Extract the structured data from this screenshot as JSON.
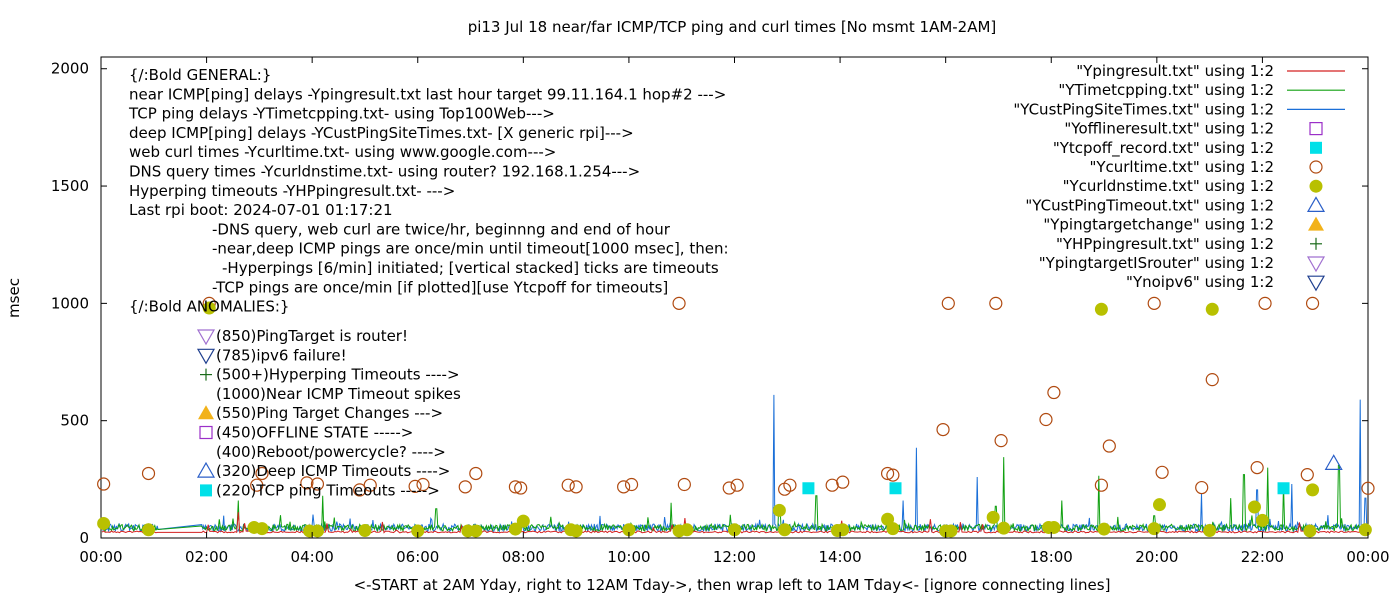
{
  "chart_data": {
    "type": "line",
    "title": "pi13 Jul 18  near/far ICMP/TCP ping and curl times [No msmt 1AM-2AM]",
    "xlabel": "<-START at 2AM Yday, right to 12AM Tday->, then wrap left to 1AM Tday<- [ignore connecting lines]",
    "ylabel": "msec",
    "xlim": [
      0,
      24
    ],
    "ylim": [
      0,
      2050
    ],
    "x_ticks": [
      "00:00",
      "02:00",
      "04:00",
      "06:00",
      "08:00",
      "10:00",
      "12:00",
      "14:00",
      "16:00",
      "18:00",
      "20:00",
      "22:00",
      "00:00"
    ],
    "y_ticks": [
      "0",
      "500",
      "1000",
      "1500",
      "2000"
    ],
    "legend_position": "top-right",
    "annotations": [
      "{/:Bold GENERAL:}",
      "near ICMP[ping] delays -Ypingresult.txt last hour target 99.11.164.1 hop#2 --->",
      "TCP ping delays -YTimetcpping.txt- using Top100Web--->",
      "deep ICMP[ping] delays -YCustPingSiteTimes.txt- [X generic rpi]--->",
      "web curl times -Ycurltime.txt- using www.google.com--->",
      "DNS query times -Ycurldnstime.txt- using router? 192.168.1.254--->",
      "Hyperping timeouts -YHPpingresult.txt- --->",
      "Last rpi boot: 2024-07-01 01:17:21",
      "-DNS query, web curl are twice/hr, beginnng and end of hour",
      "-near,deep ICMP pings are once/min until timeout[1000 msec], then:",
      "-Hyperpings [6/min] initiated; [vertical stacked] ticks are timeouts",
      "-TCP pings are once/min [if plotted][use Ytcpoff for timeouts]",
      "{/:Bold ANOMALIES:}"
    ],
    "anomaly_keys": [
      {
        "symbol": "tri-down-hollow",
        "color": "#a070d0",
        "text": "(850)PingTarget is router!"
      },
      {
        "symbol": "tri-down-hollow",
        "color": "#1f3f8f",
        "text": "(785)ipv6 failure!"
      },
      {
        "symbol": "plus",
        "color": "#1a6b1a",
        "text": "(500+)Hyperping Timeouts ---->"
      },
      {
        "symbol": "none",
        "color": "#000000",
        "text": "(1000)Near ICMP Timeout spikes"
      },
      {
        "symbol": "tri-up-filled",
        "color": "#f2b21a",
        "text": "(550)Ping Target Changes --->"
      },
      {
        "symbol": "square-hollow",
        "color": "#9b30c8",
        "text": "(450)OFFLINE STATE ----->"
      },
      {
        "symbol": "none",
        "color": "#000000",
        "text": "(400)Reboot/powercycle? ---->"
      },
      {
        "symbol": "tri-up-hollow",
        "color": "#2b5fc8",
        "text": "(320)Deep ICMP Timeouts ---->"
      },
      {
        "symbol": "square-filled",
        "color": "#00e0e8",
        "text": "(220)TCP ping Timeouts ----->"
      }
    ],
    "legend": [
      {
        "label": "\"Ypingresult.txt\" using 1:2",
        "symbol": "line",
        "color": "#d42020"
      },
      {
        "label": "\"YTimetcpping.txt\" using 1:2",
        "symbol": "line",
        "color": "#10a010"
      },
      {
        "label": "\"YCustPingSiteTimes.txt\" using 1:2",
        "symbol": "line",
        "color": "#1a6fd8"
      },
      {
        "label": "\"Yofflineresult.txt\" using 1:2",
        "symbol": "square-hollow",
        "color": "#9b30c8"
      },
      {
        "label": "\"Ytcpoff_record.txt\" using 1:2",
        "symbol": "square-filled",
        "color": "#00e0e8"
      },
      {
        "label": "\"Ycurltime.txt\" using 1:2",
        "symbol": "circle-hollow",
        "color": "#b04a10"
      },
      {
        "label": "\"Ycurldnstime.txt\" using 1:2",
        "symbol": "circle-filled",
        "color": "#b8c000"
      },
      {
        "label": "\"YCustPingTimeout.txt\" using 1:2",
        "symbol": "tri-up-hollow",
        "color": "#2b5fc8"
      },
      {
        "label": "\"Ypingtargetchange\" using 1:2",
        "symbol": "tri-up-filled",
        "color": "#f2b21a"
      },
      {
        "label": "\"YHPpingresult.txt\" using 1:2",
        "symbol": "plus",
        "color": "#1a6b1a"
      },
      {
        "label": "\"YpingtargetISrouter\" using 1:2",
        "symbol": "tri-down-hollow",
        "color": "#a070d0"
      },
      {
        "label": "\"Ynoipv6\" using 1:2",
        "symbol": "tri-down-hollow",
        "color": "#1f3f8f"
      }
    ],
    "series": [
      {
        "file": "Ycurltime.txt",
        "marker": "circle-hollow",
        "color": "#b04a10",
        "x": [
          0.05,
          0.9,
          2.05,
          2.95,
          3.05,
          3.9,
          4.1,
          4.9,
          5.1,
          5.95,
          6.1,
          6.9,
          7.1,
          7.85,
          7.95,
          8.85,
          9.0,
          9.9,
          10.05,
          10.95,
          11.05,
          11.9,
          12.05,
          12.95,
          13.05,
          13.85,
          14.05,
          14.9,
          15.0,
          15.95,
          16.05,
          16.95,
          17.05,
          17.9,
          18.05,
          18.95,
          19.1,
          19.95,
          20.1,
          20.85,
          21.05,
          21.9,
          22.05,
          22.85,
          22.95,
          24.0
        ],
        "y": [
          230,
          275,
          1000,
          225,
          275,
          235,
          230,
          205,
          225,
          220,
          228,
          218,
          275,
          218,
          213,
          225,
          218,
          218,
          228,
          1000,
          228,
          213,
          225,
          208,
          225,
          225,
          238,
          275,
          268,
          462,
          1000,
          1000,
          415,
          505,
          620,
          225,
          392,
          1000,
          280,
          215,
          675,
          300,
          1000,
          270,
          1000,
          212
        ]
      },
      {
        "file": "Ycurldnstime.txt",
        "marker": "circle-filled",
        "color": "#b8c000",
        "x": [
          0.05,
          0.9,
          2.05,
          2.9,
          3.05,
          3.95,
          4.1,
          5.0,
          6.0,
          6.95,
          7.1,
          7.85,
          8.0,
          8.9,
          9.0,
          10.0,
          10.95,
          11.1,
          12.0,
          12.85,
          12.95,
          13.95,
          14.05,
          14.9,
          15.0,
          16.0,
          16.1,
          16.9,
          17.1,
          17.95,
          18.05,
          18.95,
          19.0,
          19.95,
          20.05,
          21.0,
          21.05,
          21.85,
          22.0,
          22.9,
          22.95,
          23.95
        ],
        "y": [
          62,
          35,
          980,
          45,
          40,
          30,
          30,
          32,
          30,
          30,
          30,
          38,
          72,
          35,
          30,
          35,
          30,
          35,
          35,
          118,
          35,
          32,
          35,
          80,
          40,
          30,
          30,
          88,
          42,
          45,
          45,
          975,
          38,
          40,
          142,
          32,
          975,
          132,
          75,
          30,
          205,
          35
        ]
      },
      {
        "file": "Ytcpoff_record.txt",
        "marker": "square-filled",
        "color": "#00e0e8",
        "x": [
          13.4,
          15.05,
          22.4
        ],
        "y": [
          212,
          212,
          212
        ]
      },
      {
        "file": "YCustPingTimeout.txt",
        "marker": "tri-up-hollow",
        "color": "#2b5fc8",
        "x": [
          23.35
        ],
        "y": [
          318
        ]
      }
    ],
    "spikes": {
      "YCustPingSiteTimes.txt": {
        "x": [
          12.75,
          15.2,
          15.45,
          16.6,
          20.85,
          21.9,
          22.55,
          23.85,
          23.95
        ],
        "y": [
          610,
          160,
          385,
          260,
          190,
          205,
          230,
          590,
          170
        ]
      },
      "YTimetcpping.txt": {
        "x": [
          1.85,
          2.6,
          4.2,
          6.35,
          10.8,
          12.85,
          13.55,
          16.95,
          17.1,
          18.2,
          18.9,
          19.95,
          21.4,
          21.65,
          22.1,
          22.4,
          23.45
        ],
        "y": [
          90,
          160,
          180,
          125,
          150,
          140,
          180,
          135,
          345,
          160,
          265,
          95,
          170,
          270,
          300,
          230,
          310
        ]
      },
      "Ypingresult.txt": {
        "x": [
          2.6,
          11.05,
          15.7
        ],
        "y": [
          110,
          85,
          80
        ]
      }
    }
  }
}
